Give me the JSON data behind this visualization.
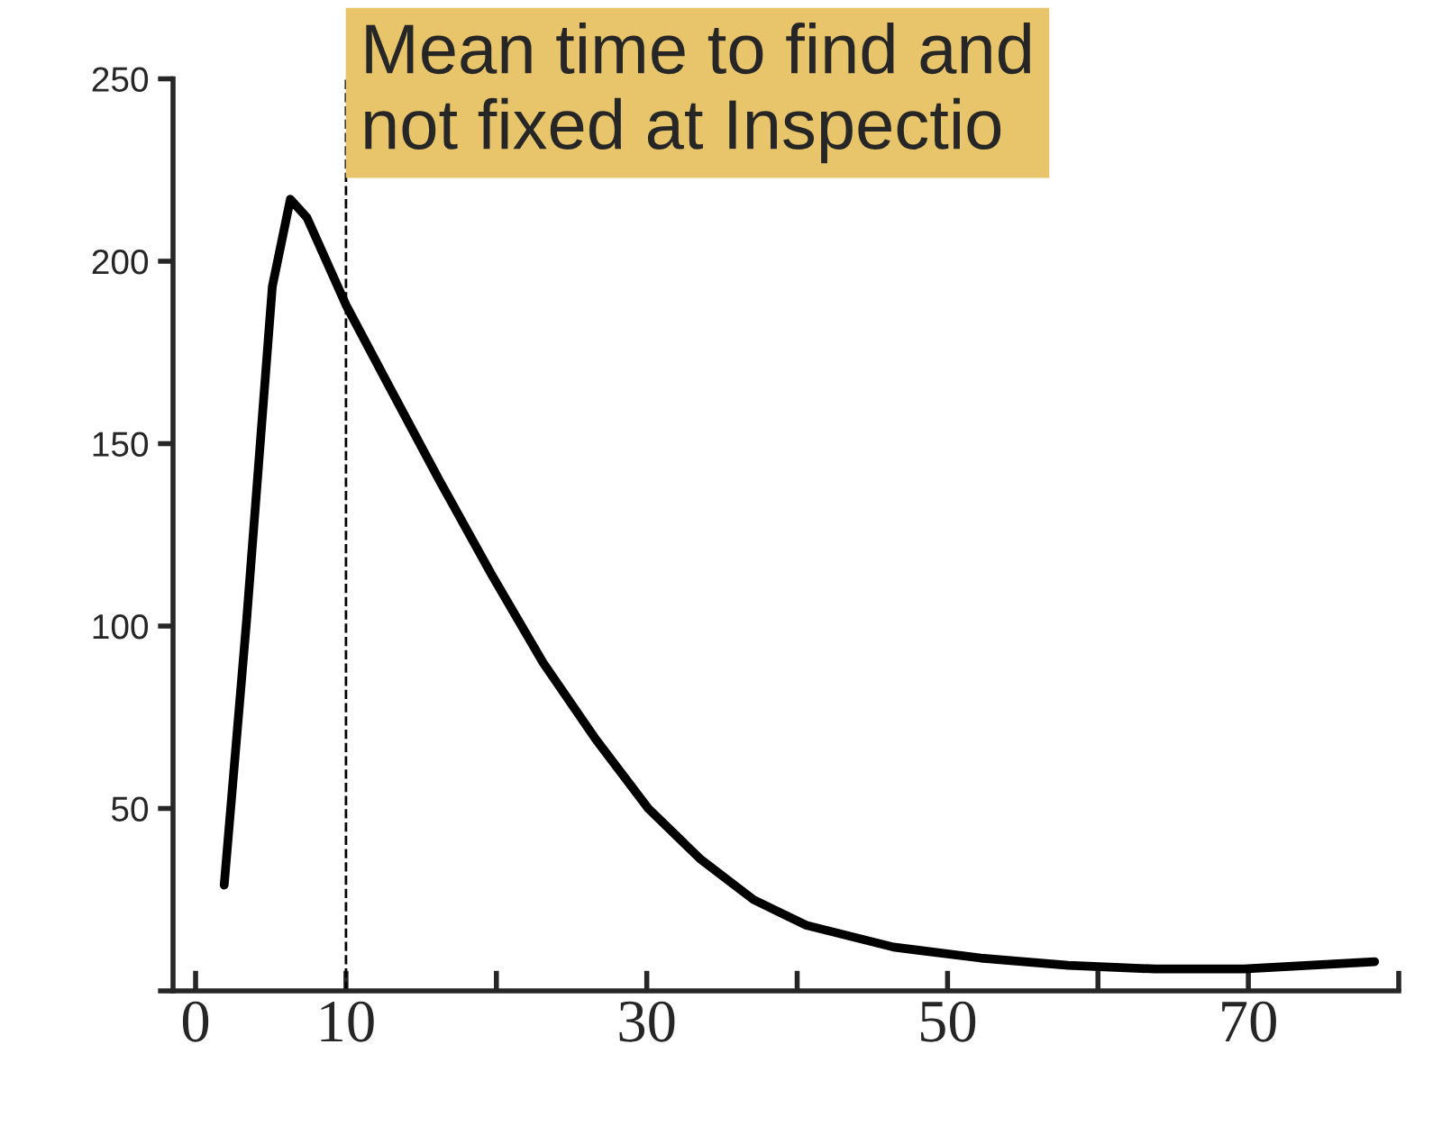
{
  "chart_data": {
    "type": "line",
    "annotations": [
      "Mean time to find and",
      "not fixed at Inspectio"
    ],
    "x": [
      1.9,
      3.4,
      5.1,
      6.3,
      7.4,
      10,
      12.7,
      16.2,
      19.7,
      23.1,
      26.6,
      30.1,
      33.6,
      37.1,
      40.6,
      46.4,
      52.2,
      58,
      63.8,
      69.7,
      78.4
    ],
    "series": [
      {
        "color": "#000000",
        "values": [
          29,
          102,
          193,
          217,
          212,
          188,
          167,
          140,
          114,
          90,
          69,
          50,
          36,
          25,
          18,
          12,
          9,
          7,
          6,
          6,
          8
        ]
      }
    ],
    "xlim": [
      -1.5,
      80
    ],
    "ylim": [
      0,
      250
    ],
    "xticks": [
      0,
      10,
      {
        "value": 20,
        "label": null
      },
      30,
      {
        "value": 40,
        "label": null
      },
      50,
      {
        "value": 60,
        "label": null
      },
      70,
      {
        "value": 80,
        "label": null
      }
    ],
    "yticks": [
      {
        "value": 0,
        "label": null
      },
      50,
      100,
      150,
      200,
      250
    ],
    "ref_lines": [
      {
        "axis": "x",
        "value": 10,
        "line_style": "dashed",
        "color": "#000000"
      }
    ],
    "grid": false,
    "legend": false,
    "marker": "none",
    "line_style": "solid"
  }
}
